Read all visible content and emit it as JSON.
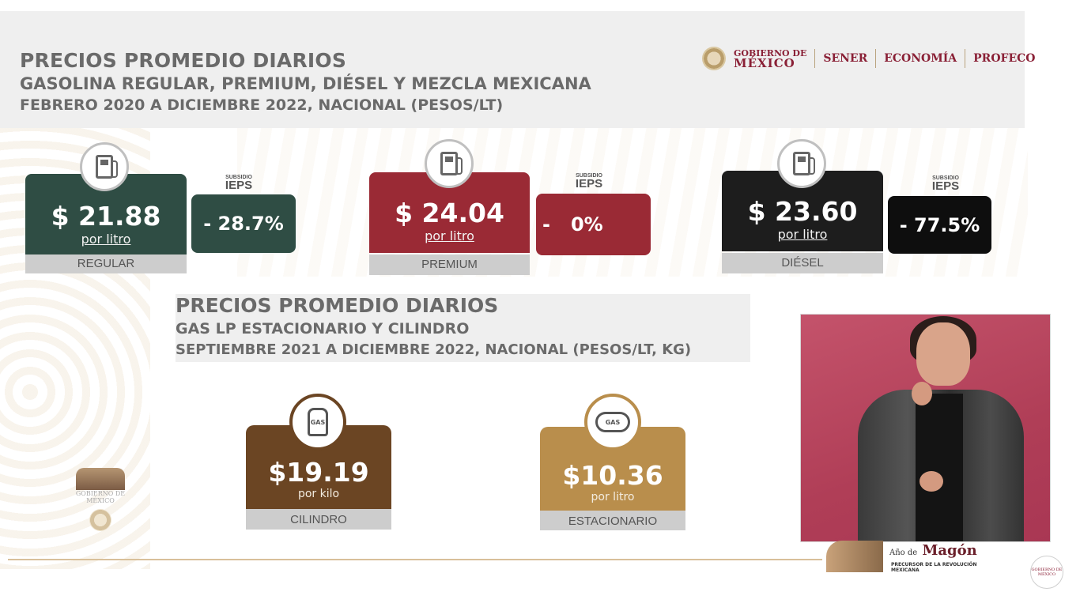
{
  "header": {
    "title_line1": "PRECIOS PROMEDIO DIARIOS",
    "title_line2": "GASOLINA REGULAR, PREMIUM, DIÉSEL Y MEZCLA MEXICANA",
    "title_line3": "FEBRERO 2020 A DICIEMBRE 2022, NACIONAL (PESOS/LT)"
  },
  "logos": {
    "gob_small": "GOBIERNO DE",
    "gob_big": "MÉXICO",
    "sener": "SENER",
    "economia": "ECONOMÍA",
    "profeco": "PROFECO"
  },
  "fuels": [
    {
      "price": "$ 21.88",
      "unit": "por litro",
      "label": "REGULAR",
      "subsidio": "SUBSIDIO",
      "ieps": "IEPS",
      "pct": "- 28.7%",
      "color": "#2f4d44"
    },
    {
      "price": "$ 24.04",
      "unit": "por litro",
      "label": "PREMIUM",
      "subsidio": "SUBSIDIO",
      "ieps": "IEPS",
      "pct_sign": "-",
      "pct": "0%",
      "color": "#9a2a35"
    },
    {
      "price": "$ 23.60",
      "unit": "por litro",
      "label": "DIÉSEL",
      "subsidio": "SUBSIDIO",
      "ieps": "IEPS",
      "pct": "- 77.5%",
      "color": "#1d1d1d"
    }
  ],
  "gas_section": {
    "title_line1": "PRECIOS PROMEDIO DIARIOS",
    "title_line2": "GAS LP ESTACIONARIO Y CILINDRO",
    "title_line3": "SEPTIEMBRE 2021 A DICIEMBRE 2022, NACIONAL (PESOS/LT, KG)"
  },
  "gas": [
    {
      "price": "$19.19",
      "unit": "por kilo",
      "label": "CILINDRO",
      "icon_text": "GAS",
      "color": "#6b4523"
    },
    {
      "price": "$10.36",
      "unit": "por litro",
      "label": "ESTACIONARIO",
      "icon_text": "GAS",
      "color": "#b98e4c"
    }
  ],
  "footer": {
    "magon_year": "Año de",
    "magon_name": "Magón",
    "magon_sub": "PRECURSOR DE LA REVOLUCIÓN MEXICANA",
    "side_logo_text": "GOBIERNO DE MÉXICO",
    "corner_text": "GOBIERNO DE MÉXICO"
  }
}
